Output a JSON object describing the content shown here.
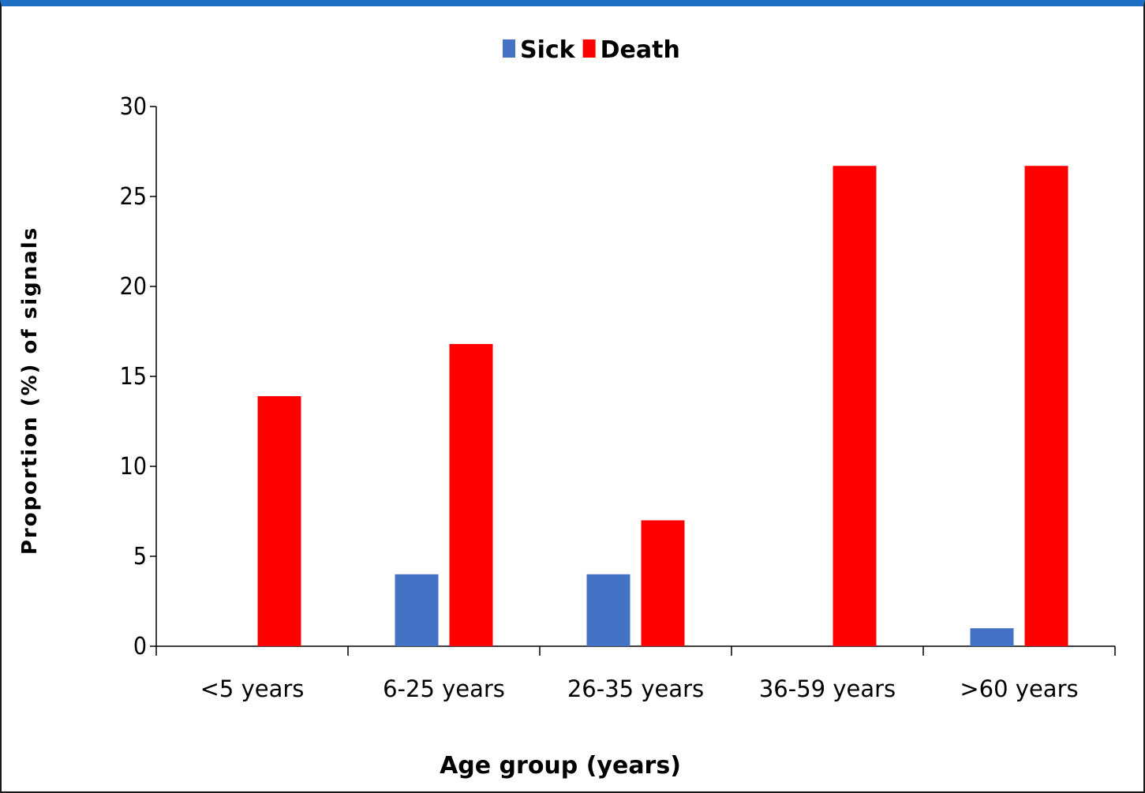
{
  "chart_data": {
    "type": "bar",
    "categories": [
      "<5 years",
      "6-25 years",
      "26-35 years",
      "36-59 years",
      ">60 years"
    ],
    "series": [
      {
        "name": "Sick",
        "values": [
          0,
          4,
          4,
          0,
          1
        ],
        "color": "#4472c4"
      },
      {
        "name": "Death",
        "values": [
          13.9,
          16.8,
          7,
          26.7,
          26.7
        ],
        "color": "#ff0000"
      }
    ],
    "xlabel": "Age group (years)",
    "ylabel": "Proportion (%) of signals",
    "ylim": [
      0,
      30
    ],
    "yticks": [
      0,
      5,
      10,
      15,
      20,
      25,
      30
    ],
    "legend_position": "top-center",
    "grid": false
  },
  "colors": {
    "frame_top": "#1f6fc4"
  }
}
